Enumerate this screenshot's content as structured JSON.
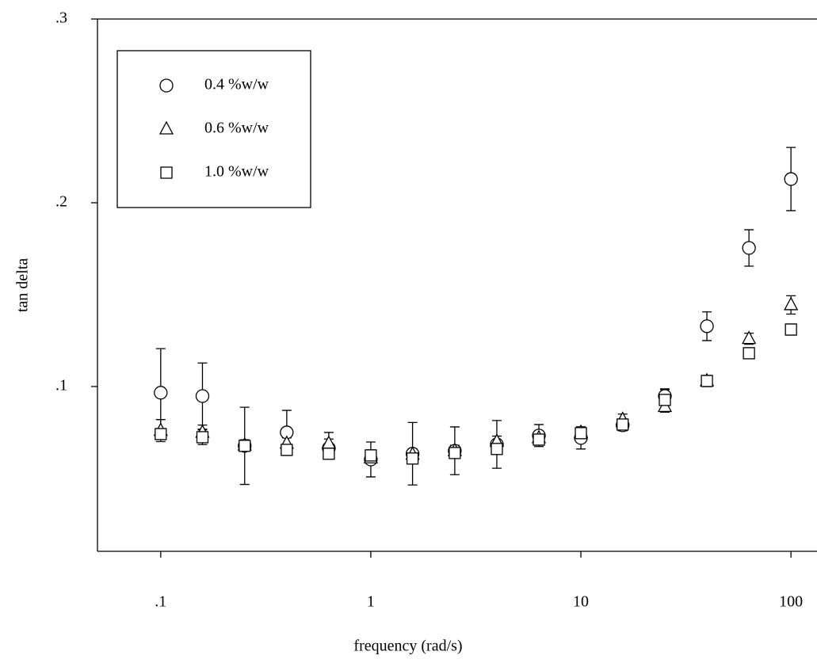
{
  "chart_data": {
    "type": "scatter",
    "x_label": "frequency (rad/s)",
    "y_label": "tan delta",
    "log_x": true,
    "xlim": [
      0.05,
      133
    ],
    "ylim": [
      0.0103,
      0.3
    ],
    "xticks": [
      {
        "value": 0.1,
        "label": ".1"
      },
      1,
      10,
      100
    ],
    "yticks": [
      {
        "value": 0.1,
        "label": ".1"
      },
      {
        "value": 0.2,
        "label": ".2"
      },
      {
        "value": 0.3,
        "label": ".3"
      }
    ],
    "grid": false,
    "legend": "upper left",
    "x": [
      0.1,
      0.158,
      0.251,
      0.398,
      0.631,
      1,
      1.58,
      2.51,
      3.98,
      6.31,
      10,
      15.8,
      25.1,
      39.8,
      63.1,
      100
    ],
    "series": [
      {
        "name": "0.4 %w/w",
        "marker": "circle",
        "color": "#000000",
        "values": [
          0.0966,
          0.0948,
          0.0677,
          0.075,
          0.0664,
          0.0603,
          0.0634,
          0.065,
          0.0685,
          0.0733,
          0.072,
          0.0789,
          0.0948,
          0.1328,
          0.1754,
          0.2129
        ],
        "errors": [
          0.024,
          0.018,
          0.021,
          0.012,
          0.005,
          0.0095,
          0.017,
          0.013,
          0.013,
          0.006,
          0.006,
          0.003,
          0.0035,
          0.0078,
          0.0099,
          0.0172
        ]
      },
      {
        "name": "0.6 %w/w",
        "marker": "triangle",
        "color": "#000000",
        "values": [
          0.076,
          0.075,
          0.068,
          0.069,
          0.069,
          0.061,
          0.063,
          0.065,
          0.07,
          0.072,
          0.075,
          0.082,
          0.089,
          0.103,
          0.126,
          0.1444
        ],
        "errors": [
          0.006,
          0.004,
          0.003,
          0.003,
          0.006,
          0.003,
          0.003,
          0.003,
          0.003,
          0.003,
          0.003,
          0.003,
          0.003,
          0.003,
          0.003,
          0.005
        ]
      },
      {
        "name": "1.0 %w/w",
        "marker": "square",
        "color": "#000000",
        "values": [
          0.0741,
          0.0724,
          0.0677,
          0.0655,
          0.0634,
          0.0625,
          0.0608,
          0.0638,
          0.066,
          0.0711,
          0.0746,
          0.0793,
          0.0927,
          0.103,
          0.1181,
          0.131
        ],
        "errors": [
          0.003,
          0.004,
          0.003,
          0.003,
          0.003,
          0.003,
          0.003,
          0.003,
          0.003,
          0.003,
          0.003,
          0.003,
          0.006,
          0.003,
          0.003,
          0.003
        ]
      }
    ]
  }
}
